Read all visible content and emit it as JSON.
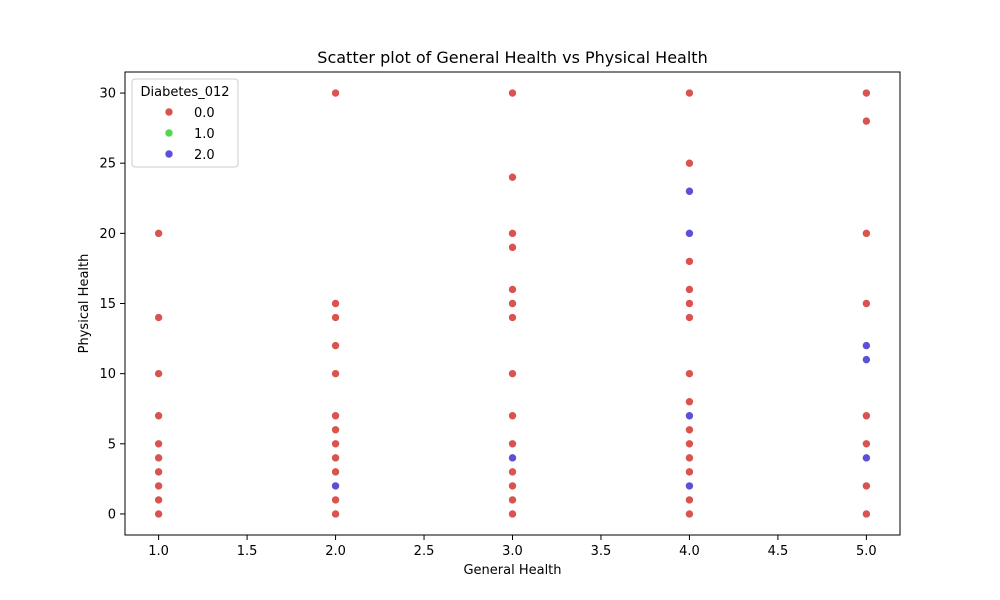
{
  "chart_data": {
    "type": "scatter",
    "title": "Scatter plot of General Health vs Physical Health",
    "xlabel": "General Health",
    "ylabel": "Physical Health",
    "xlim": [
      0.81,
      5.19
    ],
    "ylim": [
      -1.5,
      31.5
    ],
    "x_ticks": [
      "1.0",
      "1.5",
      "2.0",
      "2.5",
      "3.0",
      "3.5",
      "4.0",
      "4.5",
      "5.0"
    ],
    "y_ticks": [
      "0",
      "5",
      "10",
      "15",
      "20",
      "25",
      "30"
    ],
    "grid": false,
    "legend": {
      "title": "Diabetes_012",
      "placement": "top-left",
      "entries": [
        {
          "label": "0.0",
          "color": "#d9534f"
        },
        {
          "label": "1.0",
          "color": "#50d950"
        },
        {
          "label": "2.0",
          "color": "#5c50d9"
        }
      ]
    },
    "series": [
      {
        "name": "0.0",
        "color": "#d9534f",
        "points": [
          [
            1,
            20
          ],
          [
            1,
            14
          ],
          [
            1,
            10
          ],
          [
            1,
            7
          ],
          [
            1,
            5
          ],
          [
            1,
            4
          ],
          [
            1,
            3
          ],
          [
            1,
            2
          ],
          [
            1,
            1
          ],
          [
            1,
            0
          ],
          [
            2,
            30
          ],
          [
            2,
            15
          ],
          [
            2,
            14
          ],
          [
            2,
            12
          ],
          [
            2,
            10
          ],
          [
            2,
            7
          ],
          [
            2,
            6
          ],
          [
            2,
            5
          ],
          [
            2,
            4
          ],
          [
            2,
            3
          ],
          [
            2,
            1
          ],
          [
            2,
            0
          ],
          [
            3,
            30
          ],
          [
            3,
            24
          ],
          [
            3,
            20
          ],
          [
            3,
            19
          ],
          [
            3,
            16
          ],
          [
            3,
            15
          ],
          [
            3,
            14
          ],
          [
            3,
            10
          ],
          [
            3,
            7
          ],
          [
            3,
            5
          ],
          [
            3,
            3
          ],
          [
            3,
            2
          ],
          [
            3,
            1
          ],
          [
            3,
            0
          ],
          [
            4,
            30
          ],
          [
            4,
            25
          ],
          [
            4,
            18
          ],
          [
            4,
            16
          ],
          [
            4,
            15
          ],
          [
            4,
            14
          ],
          [
            4,
            10
          ],
          [
            4,
            8
          ],
          [
            4,
            6
          ],
          [
            4,
            5
          ],
          [
            4,
            4
          ],
          [
            4,
            3
          ],
          [
            4,
            1
          ],
          [
            4,
            0
          ],
          [
            5,
            30
          ],
          [
            5,
            28
          ],
          [
            5,
            20
          ],
          [
            5,
            15
          ],
          [
            5,
            7
          ],
          [
            5,
            5
          ],
          [
            5,
            2
          ],
          [
            5,
            0
          ]
        ]
      },
      {
        "name": "1.0",
        "color": "#50d950",
        "points": []
      },
      {
        "name": "2.0",
        "color": "#5c50d9",
        "points": [
          [
            2,
            2
          ],
          [
            3,
            4
          ],
          [
            4,
            23
          ],
          [
            4,
            20
          ],
          [
            4,
            7
          ],
          [
            4,
            2
          ],
          [
            5,
            12
          ],
          [
            5,
            11
          ],
          [
            5,
            4
          ]
        ]
      }
    ]
  }
}
